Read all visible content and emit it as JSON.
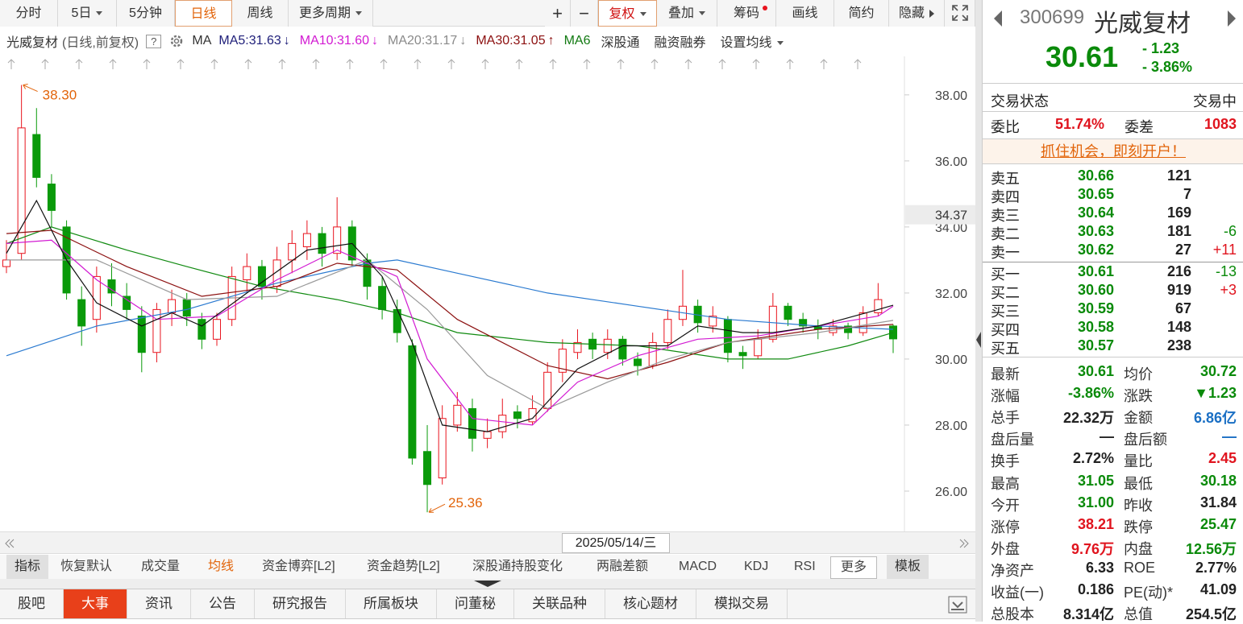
{
  "toolbar": {
    "periods": [
      "分时",
      "5日",
      "5分钟",
      "日线",
      "周线",
      "更多周期"
    ],
    "active_period": 3,
    "tools": [
      "+",
      "−",
      "复权",
      "叠加",
      "筹码",
      "画线",
      "简约",
      "隐藏"
    ],
    "active_tool": 2
  },
  "legend": {
    "title": "光威复材",
    "subtitle": "(日线,前复权)",
    "help": "?",
    "ma_label": "MA",
    "items": [
      {
        "text": "MA5:31.63",
        "arrow": "↓",
        "color": "#20207a"
      },
      {
        "text": "MA10:31.60",
        "arrow": "↓",
        "color": "#d21ad2"
      },
      {
        "text": "MA20:31.17",
        "arrow": "↓",
        "color": "#8a8a8a"
      },
      {
        "text": "MA30:31.05",
        "arrow": "↑",
        "color": "#8c1010"
      },
      {
        "text": "MA6",
        "color": "#127a12"
      }
    ],
    "links": [
      "深股通",
      "融资融券",
      "设置均线"
    ]
  },
  "chart_data": {
    "type": "candlestick",
    "candles": [
      [
        32.8,
        33.6,
        32.6,
        33.0
      ],
      [
        33.2,
        38.3,
        33.0,
        37.0
      ],
      [
        36.8,
        37.6,
        35.2,
        35.5
      ],
      [
        35.3,
        35.6,
        34.0,
        34.5
      ],
      [
        34.0,
        34.2,
        31.8,
        32.0
      ],
      [
        31.8,
        32.2,
        30.4,
        31.0
      ],
      [
        31.2,
        32.8,
        30.8,
        32.5
      ],
      [
        32.4,
        32.9,
        31.6,
        32.0
      ],
      [
        31.9,
        32.3,
        31.2,
        31.5
      ],
      [
        31.3,
        31.6,
        29.6,
        30.2
      ],
      [
        30.2,
        31.7,
        29.9,
        31.5
      ],
      [
        31.4,
        32.1,
        31.0,
        31.8
      ],
      [
        31.8,
        32.0,
        31.0,
        31.3
      ],
      [
        31.2,
        31.4,
        30.3,
        30.6
      ],
      [
        30.6,
        31.4,
        30.4,
        31.2
      ],
      [
        31.2,
        32.8,
        31.0,
        32.5
      ],
      [
        32.4,
        33.2,
        32.0,
        32.8
      ],
      [
        32.8,
        33.0,
        31.8,
        32.2
      ],
      [
        32.2,
        33.4,
        32.0,
        33.0
      ],
      [
        33.0,
        33.9,
        32.6,
        33.5
      ],
      [
        33.4,
        34.2,
        33.0,
        33.8
      ],
      [
        33.8,
        34.0,
        32.8,
        33.2
      ],
      [
        33.2,
        34.9,
        33.0,
        34.0
      ],
      [
        34.0,
        34.2,
        32.8,
        33.0
      ],
      [
        33.0,
        33.2,
        31.8,
        32.2
      ],
      [
        32.2,
        32.5,
        31.2,
        31.5
      ],
      [
        31.5,
        31.8,
        30.5,
        30.8
      ],
      [
        30.4,
        30.6,
        26.8,
        27.0
      ],
      [
        27.2,
        28.0,
        25.36,
        26.2
      ],
      [
        26.4,
        28.6,
        26.2,
        28.2
      ],
      [
        28.0,
        29.0,
        27.8,
        28.6
      ],
      [
        28.5,
        28.8,
        27.2,
        27.6
      ],
      [
        27.6,
        28.2,
        27.3,
        27.8
      ],
      [
        27.8,
        28.8,
        27.6,
        28.3
      ],
      [
        28.4,
        28.6,
        27.9,
        28.2
      ],
      [
        28.1,
        28.9,
        28.0,
        28.5
      ],
      [
        28.5,
        29.9,
        28.4,
        29.6
      ],
      [
        29.6,
        30.6,
        29.3,
        30.3
      ],
      [
        30.2,
        30.9,
        30.0,
        30.5
      ],
      [
        30.6,
        30.8,
        30.0,
        30.3
      ],
      [
        30.2,
        30.9,
        30.0,
        30.6
      ],
      [
        30.6,
        30.7,
        29.8,
        30.0
      ],
      [
        30.0,
        30.2,
        29.5,
        29.8
      ],
      [
        29.8,
        30.8,
        29.7,
        30.5
      ],
      [
        30.5,
        31.5,
        30.3,
        31.2
      ],
      [
        31.2,
        32.7,
        31.0,
        31.6
      ],
      [
        31.6,
        31.8,
        30.8,
        31.1
      ],
      [
        31.0,
        31.6,
        30.8,
        31.3
      ],
      [
        31.2,
        31.3,
        29.9,
        30.2
      ],
      [
        30.2,
        30.4,
        29.7,
        30.1
      ],
      [
        30.1,
        30.9,
        30.0,
        30.6
      ],
      [
        30.6,
        32.0,
        30.5,
        31.6
      ],
      [
        31.6,
        31.7,
        31.0,
        31.2
      ],
      [
        31.2,
        31.4,
        30.8,
        31.0
      ],
      [
        31.0,
        31.2,
        30.6,
        30.9
      ],
      [
        30.8,
        31.2,
        30.7,
        31.0
      ],
      [
        31.0,
        31.1,
        30.6,
        30.8
      ],
      [
        30.8,
        31.6,
        30.7,
        31.4
      ],
      [
        31.4,
        32.3,
        31.3,
        31.8
      ],
      [
        31.0,
        31.05,
        30.18,
        30.61
      ]
    ],
    "ylim": [
      24.78,
      38.63
    ],
    "yticks": [
      {
        "value": 26,
        "label": "26.00"
      },
      {
        "value": 28,
        "label": "28.00"
      },
      {
        "value": 30,
        "label": "30.00"
      },
      {
        "value": 32,
        "label": "32.00"
      },
      {
        "value": 34,
        "label": "34.00"
      },
      {
        "value": 36,
        "label": "36.00"
      },
      {
        "value": 38,
        "label": "38.00"
      }
    ],
    "grid": false,
    "up_color": "#e8141e",
    "down_color": "#0a9a0a",
    "high_label": "38.30",
    "low_label": "25.36",
    "cursor": {
      "value": 34.37,
      "label": "34.37"
    },
    "date_label": "2025/05/14/三",
    "lines": [
      {
        "color": "#108a10",
        "x": [
          0,
          3,
          8,
          12,
          17,
          22,
          26,
          30,
          36,
          42,
          48,
          52,
          56,
          59
        ],
        "values": [
          33.5,
          34.0,
          33.3,
          32.8,
          32.2,
          31.8,
          31.4,
          30.8,
          30.5,
          30.4,
          30.0,
          30.0,
          30.4,
          30.8
        ]
      },
      {
        "color": "#2a7ad0",
        "x": [
          0,
          6,
          12,
          18,
          24,
          26,
          30,
          36,
          42,
          48,
          54,
          59
        ],
        "values": [
          30.1,
          31.0,
          31.5,
          32.3,
          32.9,
          33.0,
          32.6,
          32.0,
          31.6,
          31.2,
          31.0,
          30.9
        ]
      },
      {
        "color": "#8c1010",
        "x": [
          0,
          3,
          8,
          13,
          18,
          22,
          26,
          30,
          36,
          40,
          44,
          48,
          54,
          59
        ],
        "values": [
          33.8,
          33.9,
          32.8,
          31.9,
          32.2,
          32.9,
          32.7,
          31.2,
          29.8,
          29.4,
          29.9,
          30.5,
          30.9,
          31.05
        ]
      },
      {
        "color": "#999999",
        "x": [
          0,
          6,
          12,
          18,
          24,
          28,
          32,
          36,
          40,
          44,
          48,
          54,
          59
        ],
        "values": [
          33.0,
          33.0,
          31.8,
          31.9,
          33.0,
          31.5,
          29.5,
          28.5,
          29.3,
          30.0,
          30.5,
          30.8,
          31.17
        ]
      },
      {
        "color": "#d21ad2",
        "x": [
          0,
          3,
          6,
          10,
          14,
          18,
          22,
          26,
          28,
          31,
          35,
          38,
          42,
          46,
          50,
          54,
          58,
          59
        ],
        "values": [
          33.5,
          33.6,
          32.4,
          31.2,
          31.3,
          32.4,
          33.3,
          32.5,
          30.0,
          28.2,
          28.0,
          29.3,
          30.1,
          30.6,
          30.7,
          31.0,
          31.3,
          31.6
        ]
      },
      {
        "color": "#111111",
        "x": [
          0,
          2,
          4,
          6,
          9,
          11,
          13,
          16,
          20,
          23,
          25,
          27,
          29,
          32,
          35,
          38,
          41,
          44,
          46,
          49,
          51,
          54,
          58,
          59
        ],
        "values": [
          33.2,
          34.8,
          33.0,
          31.7,
          31.0,
          31.4,
          31.0,
          32.0,
          33.3,
          33.5,
          32.5,
          30.5,
          28.0,
          27.8,
          28.2,
          29.7,
          30.4,
          30.4,
          31.0,
          30.8,
          30.8,
          31.0,
          31.5,
          31.63
        ]
      }
    ]
  },
  "indicator_tabs": [
    "指标",
    "恢复默认",
    "成交量",
    "均线",
    "资金博弈[L2]",
    "资金趋势[L2]",
    "深股通持股变化",
    "两融差额",
    "MACD",
    "KDJ",
    "RSI",
    "更多",
    "模板"
  ],
  "active_indicator": 3,
  "bottom_tabs": [
    "股吧",
    "大事",
    "资讯",
    "公告",
    "研究报告",
    "所属板块",
    "问董秘",
    "关联品种",
    "核心题材",
    "模拟交易"
  ],
  "active_bottom": 1,
  "quote": {
    "code": "300699",
    "name": "光威复材",
    "price": "30.61",
    "change": "- 1.23",
    "change_pct": "- 3.86%",
    "status_label": "交易状态",
    "status": "交易中",
    "ratio_label": "委比",
    "ratio": "51.74%",
    "diff_label": "委差",
    "diff": "1083",
    "banner": "抓住机会，即刻开户！",
    "book": [
      {
        "label": "卖五",
        "price": "30.66",
        "volume": "121"
      },
      {
        "label": "卖四",
        "price": "30.65",
        "volume": "7"
      },
      {
        "label": "卖三",
        "price": "30.64",
        "volume": "169"
      },
      {
        "label": "卖二",
        "price": "30.63",
        "volume": "181",
        "delta": "-6"
      },
      {
        "label": "卖一",
        "price": "30.62",
        "volume": "27",
        "delta": "+11"
      },
      {
        "label": "买一",
        "price": "30.61",
        "volume": "216",
        "delta": "-13"
      },
      {
        "label": "买二",
        "price": "30.60",
        "volume": "919",
        "delta": "+3"
      },
      {
        "label": "买三",
        "price": "30.59",
        "volume": "67"
      },
      {
        "label": "买四",
        "price": "30.58",
        "volume": "148"
      },
      {
        "label": "买五",
        "price": "30.57",
        "volume": "238"
      }
    ],
    "stats": [
      {
        "label": "最新",
        "value": "30.61",
        "tone": "g"
      },
      {
        "label": "均价",
        "value": "30.72",
        "tone": "g"
      },
      {
        "label": "涨幅",
        "value": "-3.86%",
        "tone": "g"
      },
      {
        "label": "涨跌",
        "value": "▼1.23",
        "tone": "g"
      },
      {
        "label": "总手",
        "value": "22.32万",
        "tone": "k"
      },
      {
        "label": "金额",
        "value": "6.86亿",
        "tone": "b"
      },
      {
        "label": "盘后量",
        "value": "—",
        "tone": "k"
      },
      {
        "label": "盘后额",
        "value": "—",
        "tone": "b"
      },
      {
        "label": "换手",
        "value": "2.72%",
        "tone": "k"
      },
      {
        "label": "量比",
        "value": "2.45",
        "tone": "r"
      },
      {
        "label": "最高",
        "value": "31.05",
        "tone": "g"
      },
      {
        "label": "最低",
        "value": "30.18",
        "tone": "g"
      },
      {
        "label": "今开",
        "value": "31.00",
        "tone": "g"
      },
      {
        "label": "昨收",
        "value": "31.84",
        "tone": "k"
      },
      {
        "label": "涨停",
        "value": "38.21",
        "tone": "r"
      },
      {
        "label": "跌停",
        "value": "25.47",
        "tone": "g"
      },
      {
        "label": "外盘",
        "value": "9.76万",
        "tone": "r"
      },
      {
        "label": "内盘",
        "value": "12.56万",
        "tone": "g"
      },
      {
        "label": "净资产",
        "value": "6.33",
        "tone": "k"
      },
      {
        "label": "ROE",
        "value": "2.77%",
        "tone": "k"
      },
      {
        "label": "收益(一)",
        "value": "0.186",
        "tone": "k"
      },
      {
        "label": "PE(动)*",
        "value": "41.09",
        "tone": "k"
      },
      {
        "label": "总股本",
        "value": "8.314亿",
        "tone": "k"
      },
      {
        "label": "总值",
        "value": "254.5亿",
        "tone": "k"
      }
    ]
  }
}
